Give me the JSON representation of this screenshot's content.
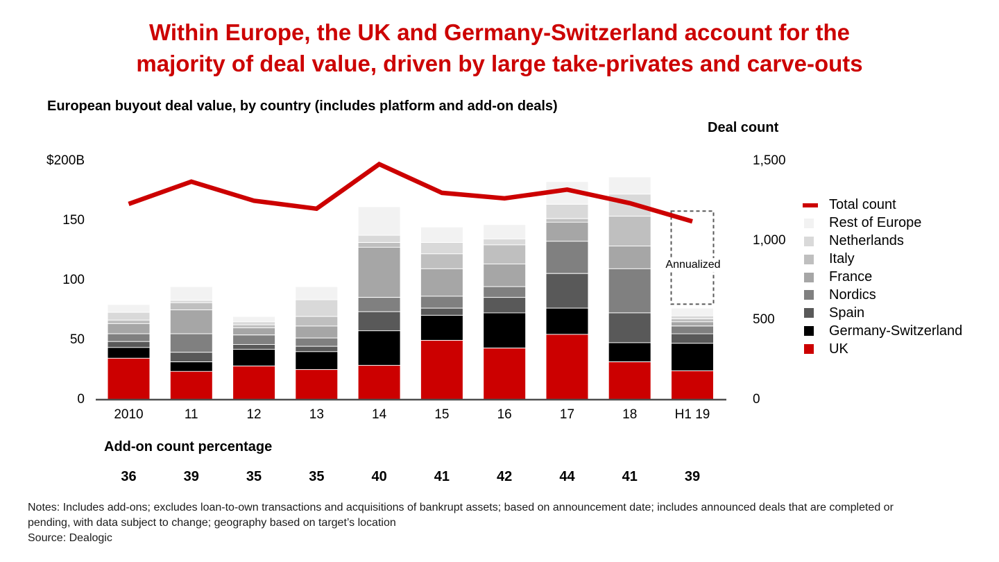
{
  "title": {
    "line1": "Within Europe, the UK and Germany-Switzerland account for the",
    "line2": "majority of deal value, driven by large take-privates and carve-outs",
    "color": "#cc0000"
  },
  "chart_data": {
    "type": "bar",
    "stacked": true,
    "subtitle": "European buyout deal value, by country (includes platform and add-on deals)",
    "categories": [
      "2010",
      "11",
      "12",
      "13",
      "14",
      "15",
      "16",
      "17",
      "18",
      "H1 19"
    ],
    "series": [
      {
        "name": "UK",
        "color": "#cc0000",
        "values": [
          35,
          24,
          28.5,
          25.5,
          29,
          50,
          43.5,
          55,
          32,
          24.5
        ]
      },
      {
        "name": "Germany-Switzerland",
        "color": "#000000",
        "values": [
          9,
          8,
          14,
          15,
          29,
          21,
          29.5,
          22,
          16,
          23
        ]
      },
      {
        "name": "Spain",
        "color": "#595959",
        "values": [
          5,
          8,
          4,
          4.5,
          16,
          6,
          13,
          29,
          25,
          8
        ]
      },
      {
        "name": "Nordics",
        "color": "#808080",
        "values": [
          6.5,
          15.5,
          8,
          7,
          12,
          10,
          9,
          27,
          37,
          6.5
        ]
      },
      {
        "name": "France",
        "color": "#a6a6a6",
        "values": [
          8.5,
          20,
          6,
          10,
          42,
          23,
          19,
          16,
          19,
          3.5
        ]
      },
      {
        "name": "Italy",
        "color": "#bfbfbf",
        "values": [
          3,
          6,
          2.5,
          8,
          4,
          12.5,
          16,
          3,
          25,
          2.5
        ]
      },
      {
        "name": "Netherlands",
        "color": "#d9d9d9",
        "values": [
          6.5,
          2,
          2.5,
          14,
          6,
          9.5,
          5,
          12,
          18.5,
          2.5
        ]
      },
      {
        "name": "Rest of Europe",
        "color": "#f2f2f2",
        "values": [
          6.5,
          11.5,
          4.5,
          11,
          24,
          13,
          12,
          19,
          14.5,
          6.5
        ]
      }
    ],
    "line_series": {
      "name": "Total count",
      "color": "#cc0000",
      "axis": "right",
      "values": [
        1230,
        1370,
        1250,
        1200,
        1480,
        1300,
        1265,
        1320,
        1235,
        1120
      ]
    },
    "left_axis": {
      "ticks": [
        {
          "label": "$200B",
          "value": 200
        },
        {
          "label": "150",
          "value": 150
        },
        {
          "label": "100",
          "value": 100
        },
        {
          "label": "50",
          "value": 50
        },
        {
          "label": "0",
          "value": 0
        }
      ],
      "max": 200
    },
    "right_axis": {
      "title": "Deal count",
      "ticks": [
        {
          "label": "1,500",
          "value": 1500
        },
        {
          "label": "1,000",
          "value": 1000
        },
        {
          "label": "500",
          "value": 500
        },
        {
          "label": "0",
          "value": 0
        }
      ],
      "max": 1500
    },
    "legend": {
      "items": [
        {
          "label": "Total count",
          "color": "#cc0000",
          "type": "line"
        },
        {
          "label": "Rest of Europe",
          "color": "#f2f2f2",
          "type": "box"
        },
        {
          "label": "Netherlands",
          "color": "#d9d9d9",
          "type": "box"
        },
        {
          "label": "Italy",
          "color": "#bfbfbf",
          "type": "box"
        },
        {
          "label": "France",
          "color": "#a6a6a6",
          "type": "box"
        },
        {
          "label": "Nordics",
          "color": "#808080",
          "type": "box"
        },
        {
          "label": "Spain",
          "color": "#595959",
          "type": "box"
        },
        {
          "label": "Germany-Switzerland",
          "color": "#000000",
          "type": "box"
        },
        {
          "label": "UK",
          "color": "#cc0000",
          "type": "box"
        }
      ]
    },
    "annualized": {
      "label": "Annualized",
      "category": "H1 19",
      "bottom_value": 80,
      "top_value": 158
    },
    "addon": {
      "label": "Add-on count percentage",
      "percentages": [
        36,
        39,
        35,
        35,
        40,
        41,
        42,
        44,
        41,
        39
      ]
    }
  },
  "notes": {
    "line1": "Notes: Includes add-ons; excludes loan-to-own transactions and acquisitions of bankrupt assets; based on announcement date; includes announced deals that are completed or",
    "line2": "pending, with data subject to change; geography based on target’s location",
    "source": "Source: Dealogic"
  }
}
